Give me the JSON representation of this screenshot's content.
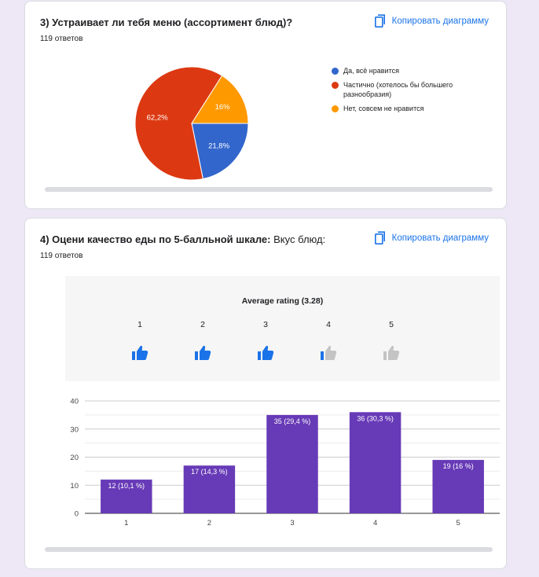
{
  "q3": {
    "title": "3) Устраивает ли тебя меню (ассортимент блюд)?",
    "count": "119 ответов",
    "copy_label": "Копировать диаграмму",
    "legend": [
      {
        "label": "Да, всё нравится",
        "color": "#3366cc"
      },
      {
        "label": "Частично (хотелось бы большего разнообразия)",
        "color": "#dc3912"
      },
      {
        "label": "Нет, совсем не нравится",
        "color": "#ff9900"
      }
    ]
  },
  "q4": {
    "title_bold": "4) Оцени качество еды по 5-балльной шкале:",
    "title_plain": " Вкус блюд:",
    "count": "119 ответов",
    "copy_label": "Копировать диаграмму",
    "average_label": "Average rating (3.28)",
    "rating_values": [
      "1",
      "2",
      "3",
      "4",
      "5"
    ],
    "average_rating": 3.28,
    "active_color": "#1a73e8",
    "inactive_color": "#c4c4c4"
  },
  "chart_data": [
    {
      "type": "pie",
      "labels": [
        "Да, всё нравится",
        "Частично (хотелось бы большего разнообразия)",
        "Нет, совсем не нравится"
      ],
      "values": [
        21.8,
        62.2,
        16
      ],
      "value_labels": [
        "21,8%",
        "62,2%",
        "16%"
      ],
      "colors": [
        "#3366cc",
        "#dc3912",
        "#ff9900"
      ],
      "legend_position": "right"
    },
    {
      "type": "bar",
      "categories": [
        "1",
        "2",
        "3",
        "4",
        "5"
      ],
      "values": [
        12,
        17,
        35,
        36,
        19
      ],
      "value_labels": [
        "12 (10,1 %)",
        "17 (14,3 %)",
        "35 (29,4 %)",
        "36 (30,3 %)",
        "19 (16 %)"
      ],
      "yticks": [
        "0",
        "10",
        "20",
        "30",
        "40"
      ],
      "ylim": [
        0,
        40
      ],
      "color": "#673ab7",
      "grid": true
    }
  ]
}
